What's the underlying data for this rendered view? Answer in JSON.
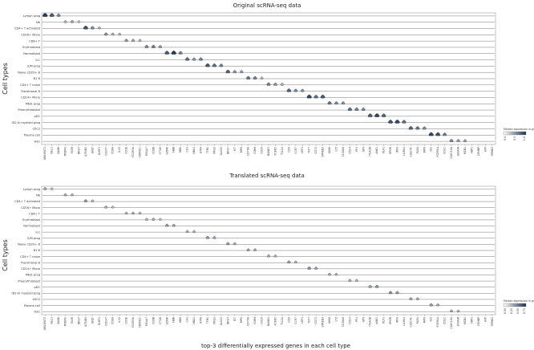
{
  "chart_data": [
    {
      "type": "violin",
      "title": "Original scRNA-seq data",
      "ylabel": "Cell types",
      "xlabel": "",
      "colorbar": {
        "label": "Median expression in group",
        "ticks": [
          "0.0",
          "0.5",
          "1.0"
        ],
        "colors": [
          "#ffffff",
          "#1f3350"
        ]
      },
      "rows": [
        "Lymph prog",
        "NK",
        "CD4+ T activated",
        "CD16+ Mono",
        "CD8+ T",
        "Erythroblast",
        "Normoblast",
        "ILC",
        "G/M prog",
        "Naive CD20+ B",
        "B1 B",
        "CD4+ T naive",
        "Transitional B",
        "CD14+ Mono",
        "MK/E prog",
        "Proerythroblast",
        "pDC",
        "ID2-hi myeloid prog",
        "cDC2",
        "Plasma cell",
        "HSC"
      ],
      "genes": [
        "GRASPAT2",
        "IGLL1",
        "BLNK",
        "PRDM1",
        "FASR",
        "NKG7",
        "IL7R/B2",
        "GNLY",
        "KLRF1",
        "CD247",
        "CD8A",
        "IL32",
        "CD3E",
        "FCGR3A",
        "CDKN1C",
        "MS4A7",
        "CD8B",
        "CTSW",
        "GZMK",
        "HBB",
        "HBD",
        "CA1",
        "HBA1",
        "GYPA",
        "TFRC",
        "PRG2",
        "ALAS2",
        "NKG7",
        "KIT",
        "MPO",
        "CD79A",
        "IGHM",
        "CD20",
        "BANK1",
        "FCER2",
        "TCL1A",
        "CD5",
        "CCR7",
        "LEF1",
        "TCF7",
        "CD72",
        "VPREB3",
        "IGHD",
        "LYZ",
        "S100A8",
        "CD14",
        "PF4",
        "GP9",
        "ITGA2B",
        "ANK1",
        "KLF1",
        "EPOR",
        "IRF8",
        "LILRA4",
        "CLEC4C",
        "PLD4",
        "MPO",
        "ID2",
        "FCER1A",
        "CD1C",
        "CLEC10A",
        "JCHAIN",
        "MZB1",
        "XBP1",
        "CRHBP",
        "AVP",
        "SPINK2"
      ],
      "violins": [
        [
          0,
          0,
          0.95
        ],
        [
          0,
          1,
          0.8
        ],
        [
          0,
          2,
          0.55
        ],
        [
          1,
          3,
          0.3
        ],
        [
          1,
          4,
          0.4
        ],
        [
          1,
          5,
          0.25
        ],
        [
          2,
          6,
          0.85
        ],
        [
          2,
          7,
          0.55
        ],
        [
          2,
          8,
          0.3
        ],
        [
          3,
          9,
          0.5
        ],
        [
          3,
          10,
          0.35
        ],
        [
          3,
          11,
          0.3
        ],
        [
          4,
          12,
          0.45
        ],
        [
          4,
          13,
          0.4
        ],
        [
          4,
          14,
          0.3
        ],
        [
          5,
          15,
          0.55
        ],
        [
          5,
          16,
          0.6
        ],
        [
          5,
          17,
          0.45
        ],
        [
          6,
          18,
          0.8
        ],
        [
          6,
          19,
          0.95
        ],
        [
          6,
          20,
          0.6
        ],
        [
          7,
          21,
          0.7
        ],
        [
          7,
          22,
          0.5
        ],
        [
          7,
          23,
          0.6
        ],
        [
          8,
          24,
          0.8
        ],
        [
          8,
          25,
          0.7
        ],
        [
          8,
          26,
          0.6
        ],
        [
          9,
          27,
          0.75
        ],
        [
          9,
          28,
          0.5
        ],
        [
          9,
          29,
          0.45
        ],
        [
          10,
          30,
          0.65
        ],
        [
          10,
          31,
          0.6
        ],
        [
          10,
          32,
          0.3
        ],
        [
          11,
          33,
          0.6
        ],
        [
          11,
          34,
          0.5
        ],
        [
          11,
          35,
          0.35
        ],
        [
          12,
          36,
          0.75
        ],
        [
          12,
          37,
          0.55
        ],
        [
          12,
          38,
          0.5
        ],
        [
          13,
          39,
          0.9
        ],
        [
          13,
          40,
          0.7
        ],
        [
          13,
          41,
          0.8
        ],
        [
          14,
          42,
          0.65
        ],
        [
          14,
          43,
          0.55
        ],
        [
          14,
          44,
          0.5
        ],
        [
          15,
          45,
          0.7
        ],
        [
          15,
          46,
          0.6
        ],
        [
          15,
          47,
          0.55
        ],
        [
          16,
          48,
          0.8
        ],
        [
          16,
          49,
          0.9
        ],
        [
          16,
          50,
          0.75
        ],
        [
          17,
          51,
          0.85
        ],
        [
          17,
          52,
          0.9
        ],
        [
          17,
          53,
          0.7
        ],
        [
          18,
          54,
          0.75
        ],
        [
          18,
          55,
          0.65
        ],
        [
          18,
          56,
          0.55
        ],
        [
          19,
          57,
          0.9
        ],
        [
          19,
          58,
          0.85
        ],
        [
          19,
          59,
          0.6
        ],
        [
          20,
          60,
          0.55
        ],
        [
          20,
          61,
          0.45
        ],
        [
          20,
          62,
          0.4
        ]
      ]
    },
    {
      "type": "violin",
      "title": "Translated scRNA-seq data",
      "ylabel": "Cell types",
      "xlabel": "top-3 differentially expressed genes in each cell type",
      "colorbar": {
        "label": "Median expression in group",
        "ticks": [
          "0.00",
          "0.25",
          "0.50",
          "0.75"
        ],
        "colors": [
          "#ffffff",
          "#1f3350"
        ]
      },
      "rows": [
        "Lymph prog",
        "NK",
        "CD4+ T activated",
        "CD16+ Mono",
        "CD8+ T",
        "Erythroblast",
        "Normoblast",
        "ILC",
        "G/M prog",
        "Naive CD20+ B",
        "B1 B",
        "CD4+ T naive",
        "Transitional B",
        "CD14+ Mono",
        "MK/E prog",
        "Proerythroblast",
        "pDC",
        "ID2-hi myeloid prog",
        "cDC2",
        "Plasma cell",
        "HSC"
      ],
      "genes": [
        "GRASPAT2",
        "IGLL1",
        "BLNK",
        "PRDM1",
        "FASR",
        "NKG7",
        "IL7R/B2",
        "GNLY",
        "KLRF1",
        "CD247",
        "CD8A",
        "IL32",
        "CD3E",
        "FCGR3A",
        "CDKN1C",
        "MS4A7",
        "CD8B",
        "CTSW",
        "GZMK",
        "HBB",
        "HBD",
        "CA1",
        "HBA1",
        "GYPA",
        "TFRC",
        "PRG2",
        "ALAS2",
        "NKG7",
        "KIT",
        "MPO",
        "CD79A",
        "IGHM",
        "CD20",
        "BANK1",
        "FCER2",
        "TCL1A",
        "CD5",
        "CCR7",
        "LEF1",
        "TCF7",
        "CD72",
        "VPREB3",
        "IGHD",
        "LYZ",
        "S100A8",
        "CD14",
        "PF4",
        "GP9",
        "ITGA2B",
        "ANK1",
        "KLF1",
        "EPOR",
        "IRF8",
        "LILRA4",
        "CLEC4C",
        "PLD4",
        "MPO",
        "ID2",
        "FCER1A",
        "CD1C",
        "CLEC10A",
        "JCHAIN",
        "MZB1",
        "XBP1",
        "CRHBP",
        "AVP",
        "SPINK2"
      ],
      "violins": [
        [
          0,
          0,
          0.4
        ],
        [
          0,
          1,
          0.25
        ],
        [
          1,
          3,
          0.35
        ],
        [
          1,
          4,
          0.3
        ],
        [
          2,
          6,
          0.45
        ],
        [
          2,
          7,
          0.3
        ],
        [
          3,
          9,
          0.35
        ],
        [
          3,
          10,
          0.25
        ],
        [
          4,
          12,
          0.3
        ],
        [
          4,
          13,
          0.35
        ],
        [
          4,
          14,
          0.3
        ],
        [
          5,
          15,
          0.3
        ],
        [
          5,
          16,
          0.35
        ],
        [
          5,
          17,
          0.25
        ],
        [
          6,
          18,
          0.45
        ],
        [
          6,
          19,
          0.4
        ],
        [
          7,
          21,
          0.35
        ],
        [
          7,
          22,
          0.3
        ],
        [
          8,
          24,
          0.45
        ],
        [
          8,
          25,
          0.4
        ],
        [
          9,
          27,
          0.45
        ],
        [
          9,
          28,
          0.35
        ],
        [
          10,
          30,
          0.4
        ],
        [
          10,
          31,
          0.35
        ],
        [
          11,
          33,
          0.35
        ],
        [
          11,
          34,
          0.3
        ],
        [
          12,
          36,
          0.45
        ],
        [
          12,
          37,
          0.35
        ],
        [
          13,
          39,
          0.5
        ],
        [
          13,
          40,
          0.4
        ],
        [
          14,
          42,
          0.35
        ],
        [
          14,
          43,
          0.3
        ],
        [
          15,
          45,
          0.35
        ],
        [
          15,
          46,
          0.3
        ],
        [
          16,
          48,
          0.45
        ],
        [
          16,
          49,
          0.5
        ],
        [
          17,
          51,
          0.5
        ],
        [
          17,
          52,
          0.45
        ],
        [
          18,
          54,
          0.4
        ],
        [
          18,
          55,
          0.35
        ],
        [
          19,
          57,
          0.45
        ],
        [
          19,
          58,
          0.35
        ],
        [
          20,
          60,
          0.35
        ],
        [
          20,
          61,
          0.3
        ]
      ]
    }
  ]
}
